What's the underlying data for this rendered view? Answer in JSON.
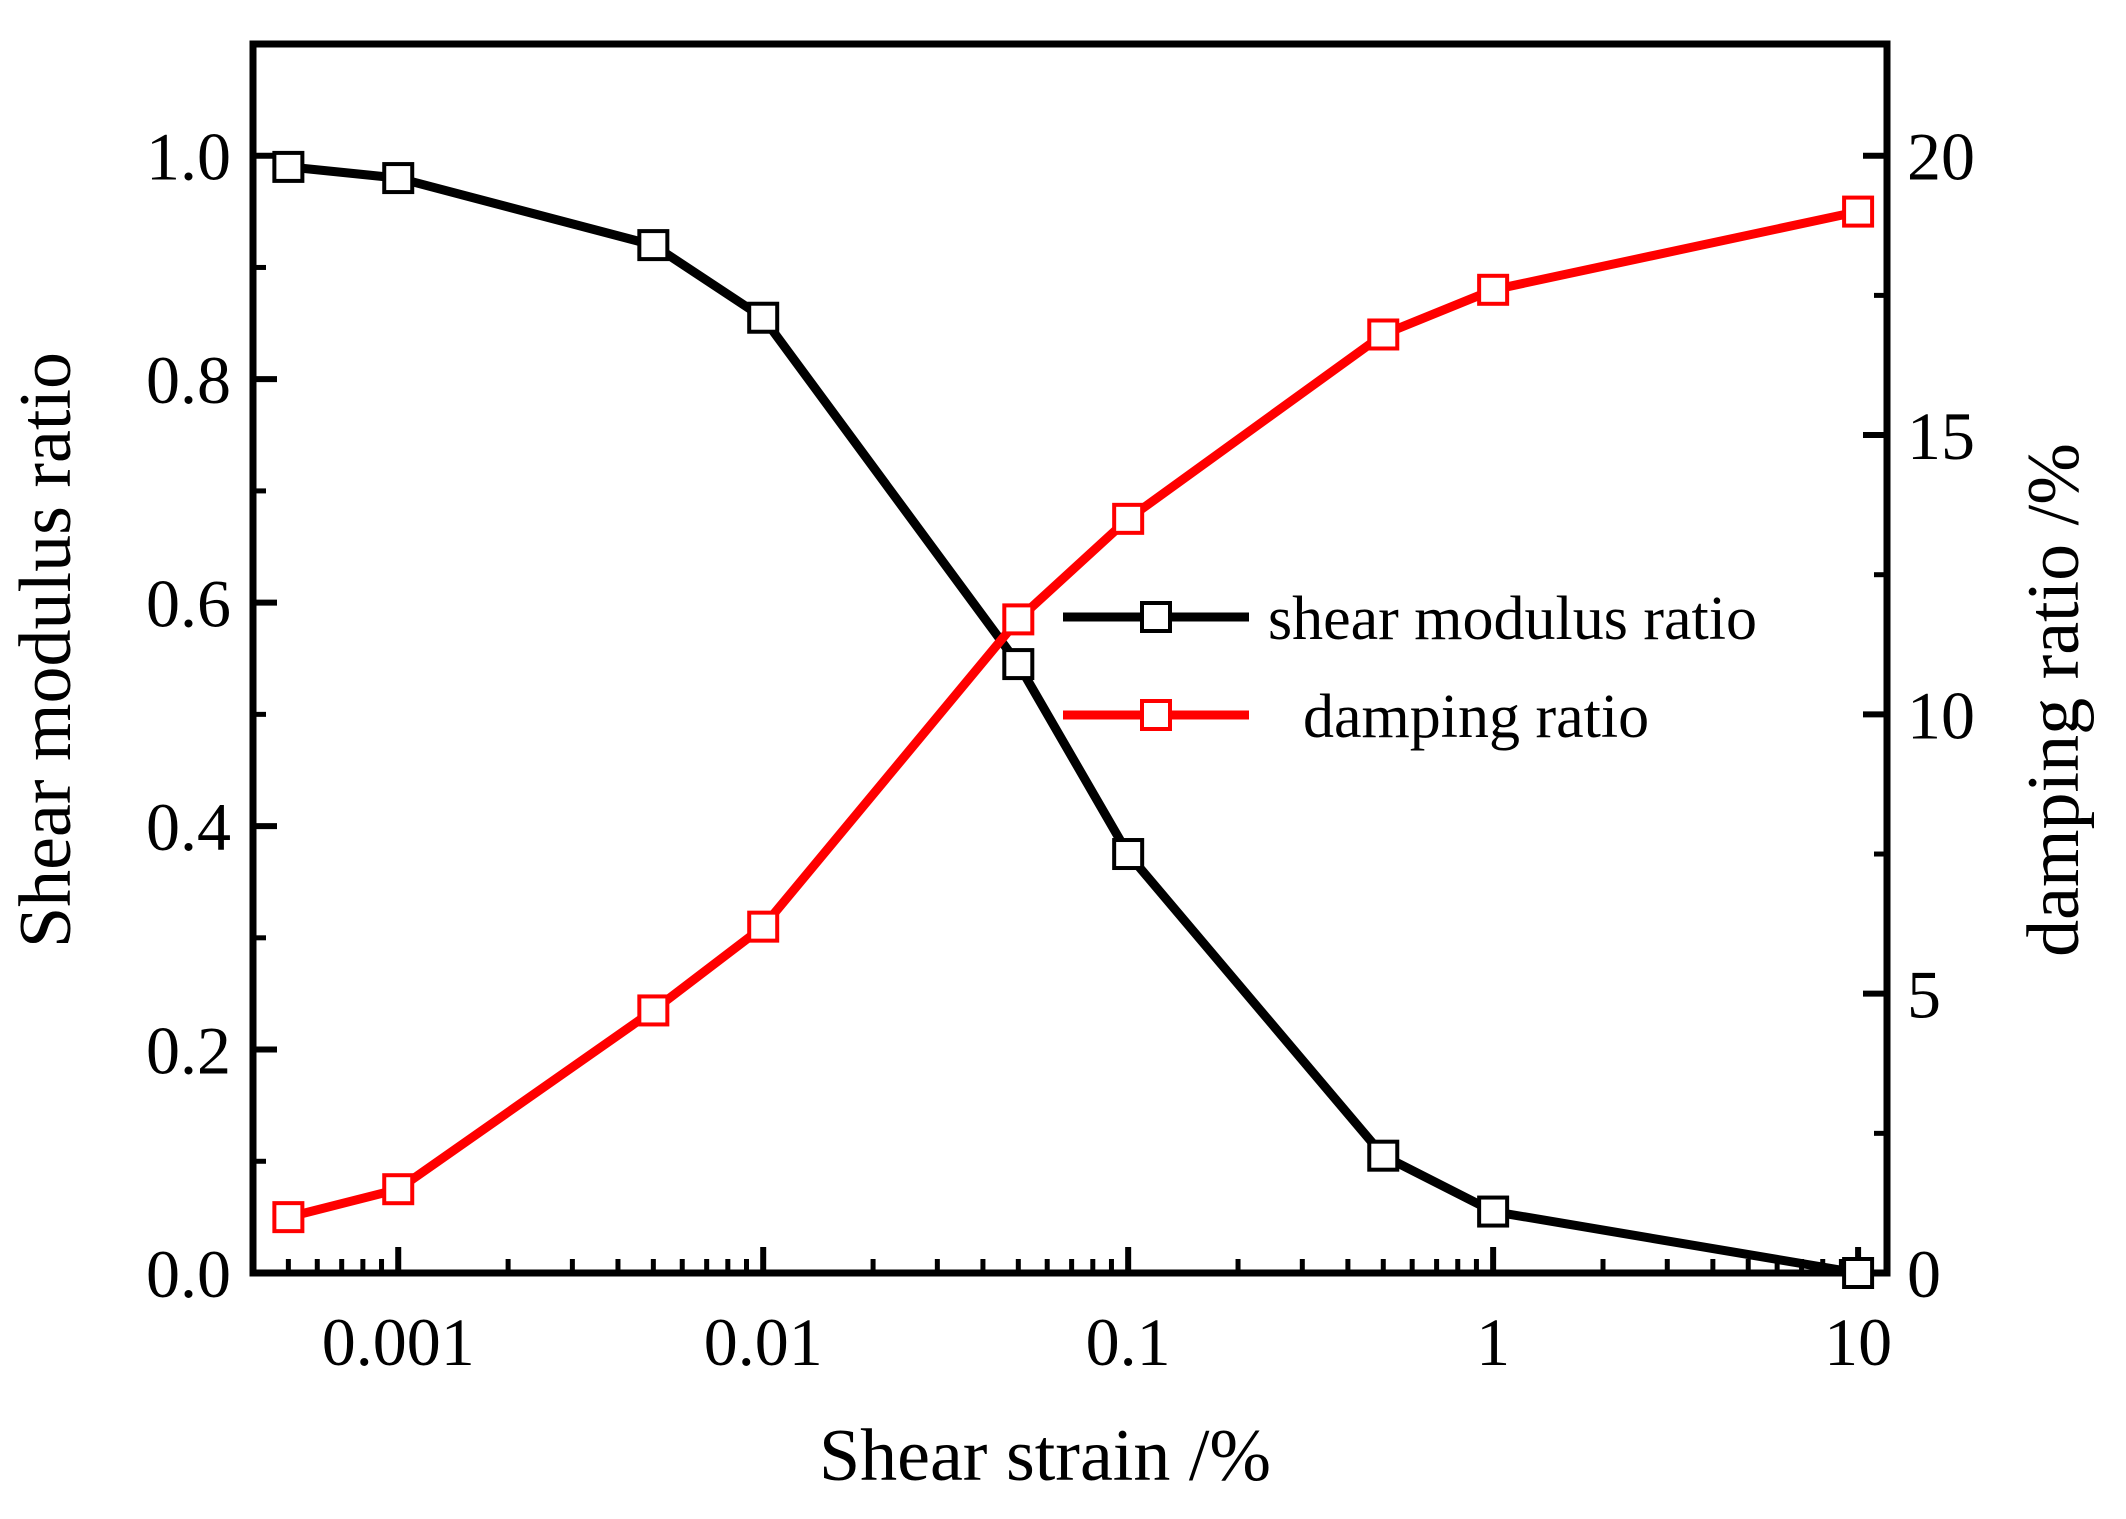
{
  "chart_data": {
    "type": "line",
    "title": "",
    "xlabel": "Shear strain /%",
    "ylabel_left": "Shear modulus ratio",
    "ylabel_right": "damping ratio /%",
    "xscale": "log",
    "xlim": [
      0.0004,
      12
    ],
    "ylim_left": [
      0,
      1.1
    ],
    "ylim_right": [
      0,
      22
    ],
    "x_tick_values": [
      0.001,
      0.01,
      0.1,
      1,
      10
    ],
    "x_tick_labels": [
      "0.001",
      "0.01",
      "0.1",
      "1",
      "10"
    ],
    "y_left_tick_values": [
      0,
      0.2,
      0.4,
      0.6,
      0.8,
      1.0
    ],
    "y_left_tick_labels": [
      "0.0",
      "0.2",
      "0.4",
      "0.6",
      "0.8",
      "1.0"
    ],
    "y_right_tick_values": [
      0,
      5,
      10,
      15,
      20
    ],
    "y_right_tick_labels": [
      "0",
      "5",
      "10",
      "15",
      "20"
    ],
    "x": [
      0.0005,
      0.001,
      0.005,
      0.01,
      0.05,
      0.1,
      0.5,
      1,
      10
    ],
    "series": [
      {
        "name": "shear modulus ratio",
        "axis": "left",
        "color": "#000000",
        "marker": "open-square",
        "values": [
          0.99,
          0.98,
          0.92,
          0.855,
          0.545,
          0.375,
          0.105,
          0.055,
          0.0
        ]
      },
      {
        "name": "damping ratio",
        "axis": "right",
        "color": "#ff0000",
        "marker": "open-square",
        "values": [
          1.0,
          1.5,
          4.7,
          6.2,
          11.7,
          13.5,
          16.8,
          17.6,
          19.0
        ]
      }
    ],
    "legend": {
      "position": "center-right",
      "entries": [
        "shear modulus ratio",
        "damping ratio"
      ]
    },
    "grid": false
  }
}
